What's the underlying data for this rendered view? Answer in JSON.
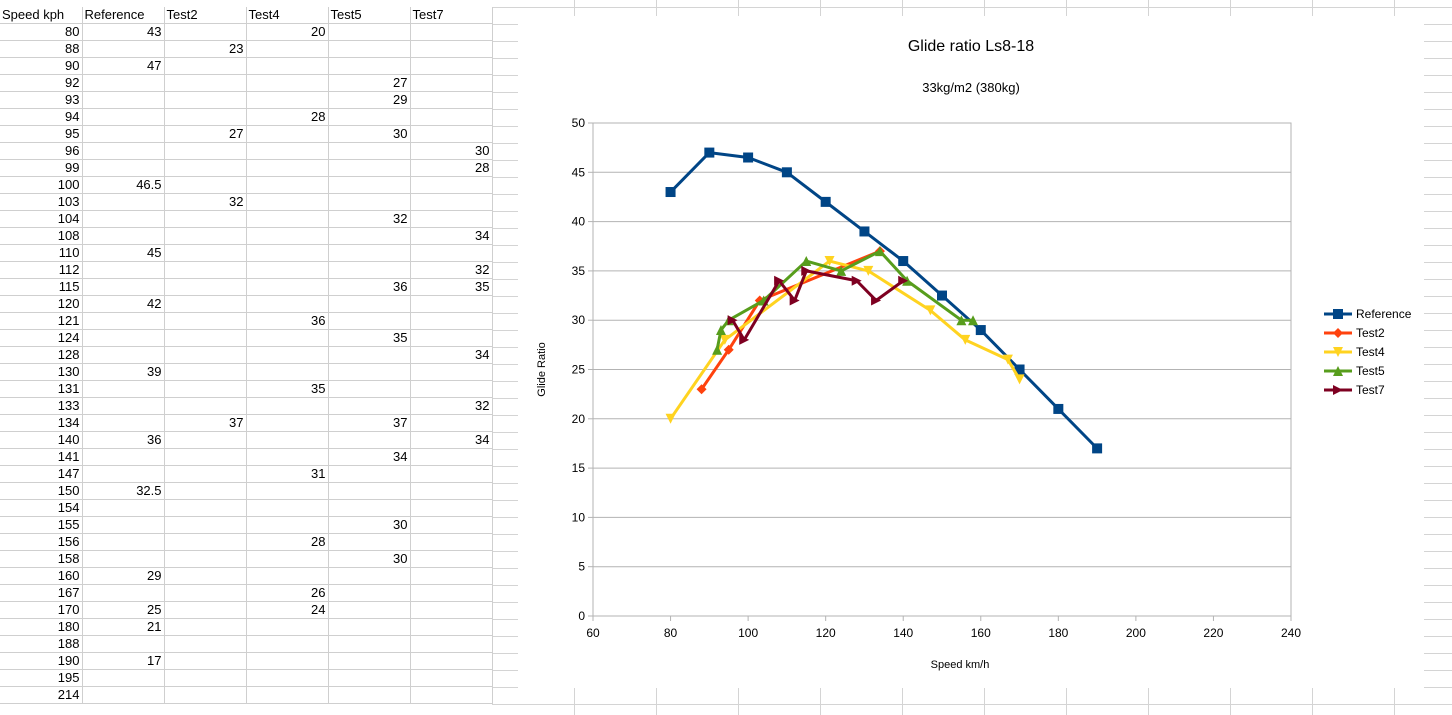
{
  "sheet": {
    "columns": [
      "Speed kph",
      "Reference",
      "Test2",
      "Test4",
      "Test5",
      "Test7"
    ],
    "rows": [
      [
        "80",
        "43",
        "",
        "20",
        "",
        ""
      ],
      [
        "88",
        "",
        "23",
        "",
        "",
        ""
      ],
      [
        "90",
        "47",
        "",
        "",
        "",
        ""
      ],
      [
        "92",
        "",
        "",
        "",
        "27",
        ""
      ],
      [
        "93",
        "",
        "",
        "",
        "29",
        ""
      ],
      [
        "94",
        "",
        "",
        "28",
        "",
        ""
      ],
      [
        "95",
        "",
        "27",
        "",
        "30",
        ""
      ],
      [
        "96",
        "",
        "",
        "",
        "",
        "30"
      ],
      [
        "99",
        "",
        "",
        "",
        "",
        "28"
      ],
      [
        "100",
        "46.5",
        "",
        "",
        "",
        ""
      ],
      [
        "103",
        "",
        "32",
        "",
        "",
        ""
      ],
      [
        "104",
        "",
        "",
        "",
        "32",
        ""
      ],
      [
        "108",
        "",
        "",
        "",
        "",
        "34"
      ],
      [
        "110",
        "45",
        "",
        "",
        "",
        ""
      ],
      [
        "112",
        "",
        "",
        "",
        "",
        "32"
      ],
      [
        "115",
        "",
        "",
        "",
        "36",
        "35"
      ],
      [
        "120",
        "42",
        "",
        "",
        "",
        ""
      ],
      [
        "121",
        "",
        "",
        "36",
        "",
        ""
      ],
      [
        "124",
        "",
        "",
        "",
        "35",
        ""
      ],
      [
        "128",
        "",
        "",
        "",
        "",
        "34"
      ],
      [
        "130",
        "39",
        "",
        "",
        "",
        ""
      ],
      [
        "131",
        "",
        "",
        "35",
        "",
        ""
      ],
      [
        "133",
        "",
        "",
        "",
        "",
        "32"
      ],
      [
        "134",
        "",
        "37",
        "",
        "37",
        ""
      ],
      [
        "140",
        "36",
        "",
        "",
        "",
        "34"
      ],
      [
        "141",
        "",
        "",
        "",
        "34",
        ""
      ],
      [
        "147",
        "",
        "",
        "31",
        "",
        ""
      ],
      [
        "150",
        "32.5",
        "",
        "",
        "",
        ""
      ],
      [
        "154",
        "",
        "",
        "",
        "",
        ""
      ],
      [
        "155",
        "",
        "",
        "",
        "30",
        ""
      ],
      [
        "156",
        "",
        "",
        "28",
        "",
        ""
      ],
      [
        "158",
        "",
        "",
        "",
        "30",
        ""
      ],
      [
        "160",
        "29",
        "",
        "",
        "",
        ""
      ],
      [
        "167",
        "",
        "",
        "26",
        "",
        ""
      ],
      [
        "170",
        "25",
        "",
        "24",
        "",
        ""
      ],
      [
        "180",
        "21",
        "",
        "",
        "",
        ""
      ],
      [
        "188",
        "",
        "",
        "",
        "",
        ""
      ],
      [
        "190",
        "17",
        "",
        "",
        "",
        ""
      ],
      [
        "195",
        "",
        "",
        "",
        "",
        ""
      ],
      [
        "214",
        "",
        "",
        "",
        "",
        ""
      ]
    ]
  },
  "chart_data": {
    "type": "scatter",
    "title": "Glide ratio Ls8-18",
    "subtitle": "33kg/m2 (380kg)",
    "xlabel": "Speed km/h",
    "ylabel": "Glide Ratio",
    "xlim": [
      60,
      240
    ],
    "ylim": [
      0,
      50
    ],
    "xticks": [
      60,
      80,
      100,
      120,
      140,
      160,
      180,
      200,
      220,
      240
    ],
    "yticks": [
      0,
      5,
      10,
      15,
      20,
      25,
      30,
      35,
      40,
      45,
      50
    ],
    "grid": "horizontal",
    "legend": "right",
    "series": [
      {
        "name": "Reference",
        "color": "#004586",
        "marker": "square",
        "x": [
          80,
          90,
          100,
          110,
          120,
          130,
          140,
          150,
          160,
          170,
          180,
          190
        ],
        "y": [
          43,
          47,
          46.5,
          45,
          42,
          39,
          36,
          32.5,
          29,
          25,
          21,
          17
        ]
      },
      {
        "name": "Test2",
        "color": "#ff420e",
        "marker": "diamond",
        "x": [
          88,
          95,
          103,
          134
        ],
        "y": [
          23,
          27,
          32,
          37
        ]
      },
      {
        "name": "Test4",
        "color": "#ffd320",
        "marker": "triangle-down",
        "x": [
          80,
          94,
          121,
          131,
          147,
          156,
          167,
          170
        ],
        "y": [
          20,
          28,
          36,
          35,
          31,
          28,
          26,
          24
        ]
      },
      {
        "name": "Test5",
        "color": "#579d1c",
        "marker": "triangle-up",
        "x": [
          92,
          93,
          95,
          104,
          115,
          124,
          134,
          141,
          155,
          158
        ],
        "y": [
          27,
          29,
          30,
          32,
          36,
          35,
          37,
          34,
          30,
          30
        ]
      },
      {
        "name": "Test7",
        "color": "#7e0021",
        "marker": "triangle-right",
        "x": [
          96,
          99,
          108,
          112,
          115,
          128,
          133,
          140
        ],
        "y": [
          30,
          28,
          34,
          32,
          35,
          34,
          32,
          34
        ]
      }
    ]
  }
}
